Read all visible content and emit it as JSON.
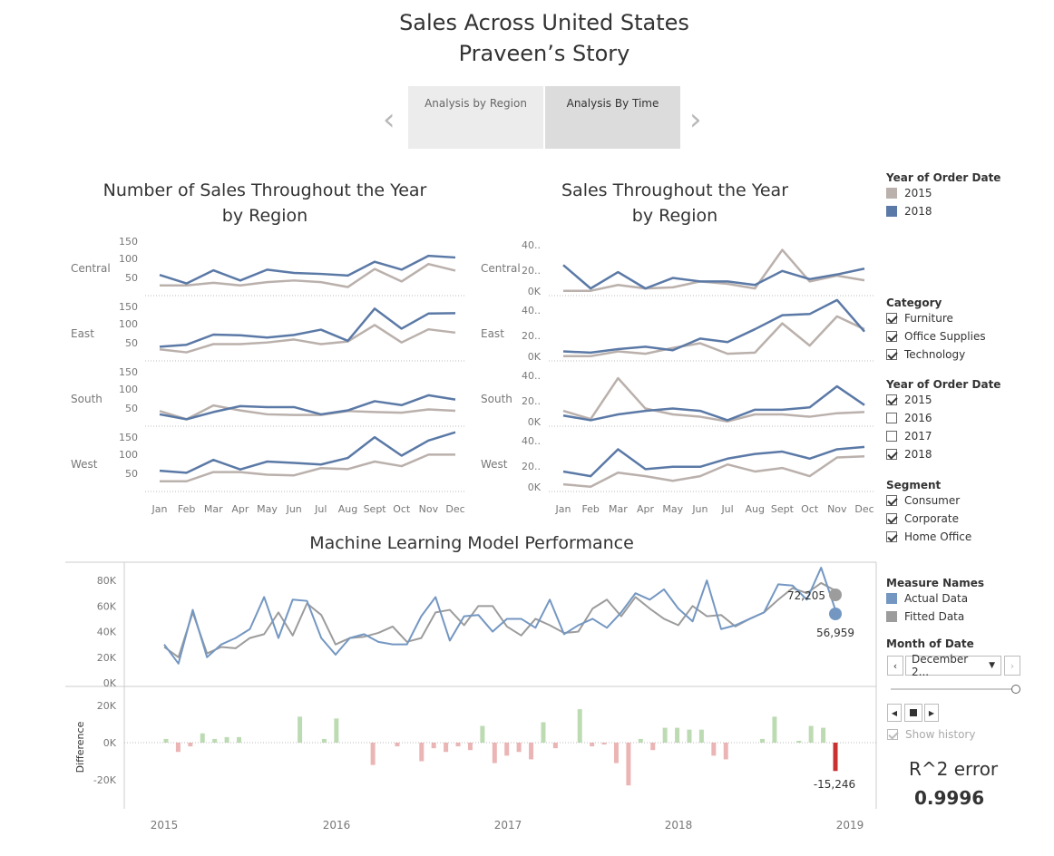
{
  "story": {
    "title_line1": "Sales Across United States",
    "title_line2": "Praveen’s Story",
    "tabs": [
      {
        "label": "Analysis by Region",
        "active": false
      },
      {
        "label": "Analysis By Time",
        "active": true
      }
    ],
    "nav_prev_icon": "chevron-left-icon",
    "nav_next_icon": "chevron-right-icon"
  },
  "colors": {
    "y2015": "#bab0ac",
    "y2018": "#5b79a6",
    "actual": "#7497c2",
    "fitted": "#9c9c9c",
    "pos_bar": "#a7cf9a",
    "neg_bar": "#e49c9c"
  },
  "chart_data": [
    {
      "type": "line",
      "title": "Number of Sales Throughout the Year\nby Region",
      "title_lines": [
        "Number of Sales Throughout the Year",
        "by Region"
      ],
      "x": [
        "Jan",
        "Feb",
        "Mar",
        "Apr",
        "May",
        "Jun",
        "Jul",
        "Aug",
        "Sept",
        "Oct",
        "Nov",
        "Dec"
      ],
      "yticks": [
        "150",
        "100",
        "50"
      ],
      "ylim": [
        0,
        160
      ],
      "panels": [
        {
          "region": "Central",
          "series": [
            {
              "name": "2015",
              "values": [
                20,
                20,
                28,
                20,
                30,
                35,
                30,
                15,
                70,
                32,
                85,
                65
              ]
            },
            {
              "name": "2018",
              "values": [
                52,
                26,
                66,
                35,
                68,
                58,
                55,
                50,
                92,
                68,
                110,
                105
              ]
            }
          ]
        },
        {
          "region": "East",
          "series": [
            {
              "name": "2015",
              "values": [
                24,
                15,
                40,
                40,
                45,
                54,
                40,
                48,
                98,
                45,
                85,
                75
              ]
            },
            {
              "name": "2018",
              "values": [
                32,
                38,
                69,
                67,
                60,
                68,
                84,
                50,
                148,
                87,
                133,
                134
              ]
            }
          ]
        },
        {
          "region": "South",
          "series": [
            {
              "name": "2015",
              "values": [
                35,
                10,
                52,
                37,
                25,
                23,
                23,
                35,
                32,
                30,
                40,
                36
              ]
            },
            {
              "name": "2018",
              "values": [
                25,
                10,
                32,
                50,
                47,
                47,
                25,
                37,
                65,
                53,
                83,
                70
              ]
            }
          ]
        },
        {
          "region": "West",
          "series": [
            {
              "name": "2015",
              "values": [
                20,
                20,
                48,
                48,
                40,
                38,
                60,
                57,
                80,
                66,
                101,
                101
              ]
            },
            {
              "name": "2018",
              "values": [
                52,
                46,
                85,
                56,
                80,
                76,
                71,
                91,
                154,
                98,
                144,
                169
              ]
            }
          ]
        }
      ]
    },
    {
      "type": "line",
      "title": "Sales Throughout the Year\nby Region",
      "title_lines": [
        "Sales Throughout the Year",
        "by Region"
      ],
      "x": [
        "Jan",
        "Feb",
        "Mar",
        "Apr",
        "May",
        "Jun",
        "Jul",
        "Aug",
        "Sept",
        "Oct",
        "Nov",
        "Dec"
      ],
      "yticks": [
        "40..",
        "20..",
        "0K"
      ],
      "ylim": [
        0,
        45000
      ],
      "panels": [
        {
          "region": "Central",
          "series": [
            {
              "name": "2015",
              "values": [
                1000,
                1000,
                6000,
                3000,
                4000,
                9000,
                7000,
                3000,
                36000,
                9000,
                14000,
                10000
              ]
            },
            {
              "name": "2018",
              "values": [
                23000,
                3000,
                17000,
                3000,
                12000,
                9000,
                9000,
                6000,
                18000,
                11000,
                15000,
                20000
              ]
            }
          ]
        },
        {
          "region": "East",
          "series": [
            {
              "name": "2015",
              "values": [
                1000,
                1000,
                5000,
                3000,
                8000,
                12000,
                3000,
                4000,
                29000,
                10000,
                35000,
                24000
              ]
            },
            {
              "name": "2018",
              "values": [
                5000,
                4000,
                7000,
                9000,
                6000,
                16000,
                13000,
                24000,
                36000,
                37000,
                49000,
                22000
              ]
            }
          ]
        },
        {
          "region": "South",
          "series": [
            {
              "name": "2015",
              "values": [
                10000,
                3000,
                38000,
                12000,
                7000,
                5000,
                1000,
                7000,
                7000,
                5000,
                8000,
                9000
              ]
            },
            {
              "name": "2018",
              "values": [
                6000,
                2000,
                7000,
                10000,
                12000,
                10000,
                2000,
                11000,
                11000,
                13000,
                31000,
                15000
              ]
            }
          ]
        },
        {
          "region": "West",
          "series": [
            {
              "name": "2015",
              "values": [
                3000,
                1000,
                13000,
                10000,
                6000,
                10000,
                20000,
                14000,
                17000,
                10000,
                26000,
                27000
              ]
            },
            {
              "name": "2018",
              "values": [
                14000,
                10000,
                33000,
                16000,
                18000,
                18000,
                25000,
                29000,
                31000,
                25000,
                33000,
                35000
              ]
            }
          ]
        }
      ]
    },
    {
      "type": "line",
      "title": "Machine Learning Model Performance",
      "xticks": [
        "2015",
        "2016",
        "2017",
        "2018",
        "2019"
      ],
      "yticks": [
        "80K",
        "60K",
        "40K",
        "20K",
        "0K"
      ],
      "ylim": [
        0,
        90000
      ],
      "series": [
        {
          "name": "Actual Data",
          "values": [
            30000,
            15000,
            57000,
            20000,
            30000,
            35000,
            42000,
            67000,
            35000,
            65000,
            64000,
            35000,
            22000,
            35000,
            38000,
            32000,
            30000,
            30000,
            52000,
            67000,
            33000,
            52000,
            53000,
            40000,
            50000,
            50000,
            43000,
            65000,
            38000,
            45000,
            50000,
            43000,
            55000,
            70000,
            65000,
            73000,
            58000,
            48000,
            80000,
            42000,
            45000,
            50000,
            55000,
            77000,
            76000,
            65000,
            90000,
            57000
          ]
        },
        {
          "name": "Fitted Data",
          "values": [
            28000,
            20000,
            55000,
            23000,
            28000,
            27000,
            35000,
            38000,
            55000,
            37000,
            62000,
            53000,
            30000,
            35000,
            36000,
            39000,
            44000,
            32000,
            35000,
            55000,
            57000,
            45000,
            60000,
            60000,
            44000,
            37000,
            50000,
            45000,
            39000,
            40000,
            58000,
            65000,
            52000,
            67000,
            58000,
            50000,
            45000,
            60000,
            52000,
            53000,
            44000,
            50000,
            55000,
            65000,
            74000,
            70000,
            78000,
            72000
          ]
        }
      ],
      "annotations": {
        "fitted_last": "72,205",
        "actual_last": "56,959"
      }
    },
    {
      "type": "bar",
      "title": "",
      "ylabel": "Difference",
      "yticks": [
        "20K",
        "0K",
        "-20K"
      ],
      "ylim": [
        -27000,
        22000
      ],
      "values": [
        2000,
        -5000,
        -2000,
        5000,
        2000,
        3000,
        3000,
        0,
        0,
        0,
        0,
        14000,
        0,
        2000,
        13000,
        0,
        0,
        -12000,
        0,
        -2000,
        0,
        -10000,
        -3000,
        -5000,
        -2000,
        -4000,
        9000,
        -11000,
        -7000,
        -5000,
        -9000,
        11000,
        -3000,
        0,
        18000,
        -2000,
        -1000,
        -11000,
        -23000,
        2000,
        -4000,
        8000,
        8000,
        7000,
        7000,
        -7000,
        -9000,
        0,
        0,
        2000,
        14000,
        0,
        1000,
        9000,
        8000,
        -15246
      ],
      "annotations": {
        "last": "-15,246"
      }
    }
  ],
  "legend_year": {
    "title": "Year of Order Date",
    "items": [
      {
        "label": "2015",
        "color": "#bab0ac"
      },
      {
        "label": "2018",
        "color": "#5b79a6"
      }
    ]
  },
  "filter_category": {
    "title": "Category",
    "items": [
      {
        "label": "Furniture",
        "checked": true
      },
      {
        "label": "Office Supplies",
        "checked": true
      },
      {
        "label": "Technology",
        "checked": true
      }
    ]
  },
  "filter_year": {
    "title": "Year of Order Date",
    "items": [
      {
        "label": "2015",
        "checked": true
      },
      {
        "label": "2016",
        "checked": false
      },
      {
        "label": "2017",
        "checked": false
      },
      {
        "label": "2018",
        "checked": true
      }
    ]
  },
  "filter_segment": {
    "title": "Segment",
    "items": [
      {
        "label": "Consumer",
        "checked": true
      },
      {
        "label": "Corporate",
        "checked": true
      },
      {
        "label": "Home Office",
        "checked": true
      }
    ]
  },
  "legend_measure": {
    "title": "Measure Names",
    "items": [
      {
        "label": "Actual Data",
        "color": "#7497c2"
      },
      {
        "label": "Fitted Data",
        "color": "#9c9c9c"
      }
    ]
  },
  "month_filter": {
    "title": "Month of Date",
    "selected": "December 2...",
    "slider_value": 1.0,
    "show_history": "Show history"
  },
  "r2": {
    "label": "R^2 error",
    "value": "0.9996"
  }
}
